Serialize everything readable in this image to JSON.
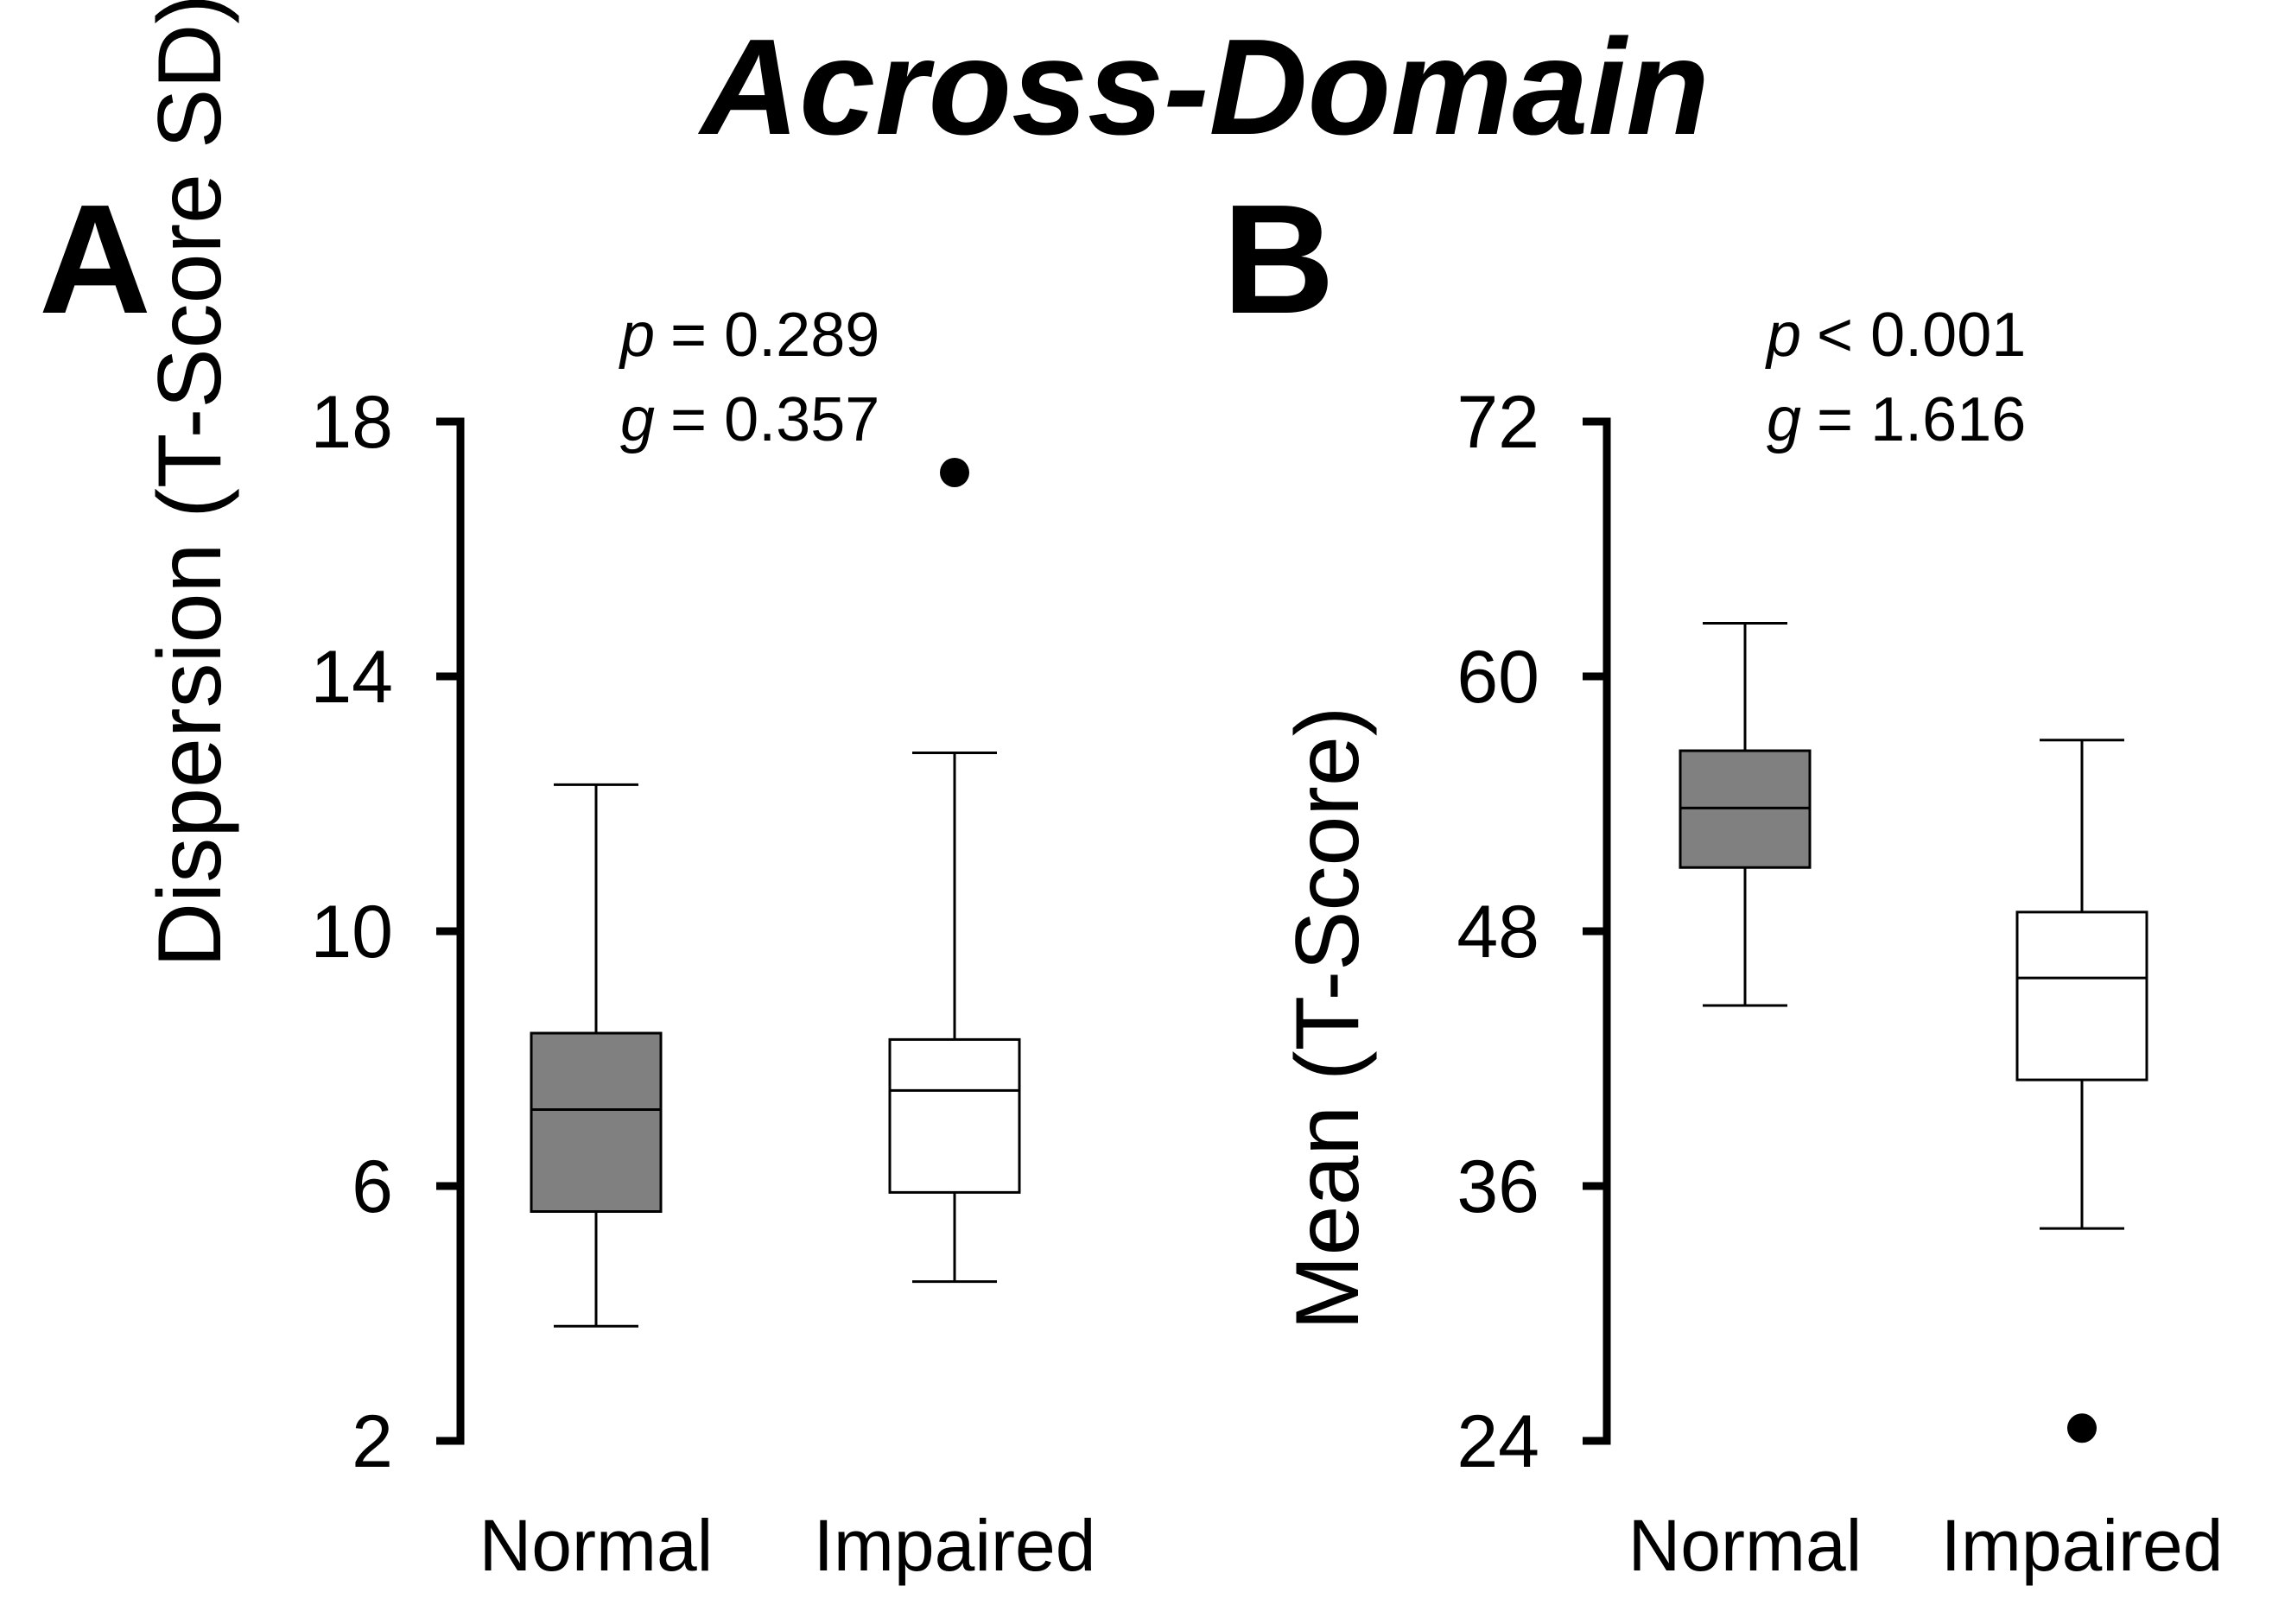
{
  "title": "Across-Domain",
  "chart_data": [
    {
      "panel": "A",
      "type": "box",
      "ylabel": "Dispersion (T-Score SD)",
      "ylim": [
        2,
        18
      ],
      "yticks": [
        2,
        6,
        10,
        14,
        18
      ],
      "categories": [
        "Normal",
        "Impaired"
      ],
      "stats": {
        "p_symbol": "p",
        "p_text": "= 0.289",
        "g_symbol": "g",
        "g_text": "= 0.357"
      },
      "boxes": [
        {
          "category": "Normal",
          "whisker_low": 3.8,
          "q1": 5.6,
          "median": 7.2,
          "q3": 8.4,
          "whisker_high": 12.3,
          "outliers": [],
          "fill": "#808080"
        },
        {
          "category": "Impaired",
          "whisker_low": 4.5,
          "q1": 5.9,
          "median": 7.5,
          "q3": 8.3,
          "whisker_high": 12.8,
          "outliers": [
            17.2
          ],
          "fill": "#ffffff"
        }
      ]
    },
    {
      "panel": "B",
      "type": "box",
      "ylabel": "Mean (T-Score)",
      "ylim": [
        24,
        72
      ],
      "yticks": [
        24,
        36,
        48,
        60,
        72
      ],
      "categories": [
        "Normal",
        "Impaired"
      ],
      "stats": {
        "p_symbol": "p",
        "p_text": "< 0.001",
        "g_symbol": "g",
        "g_text": "= 1.616"
      },
      "boxes": [
        {
          "category": "Normal",
          "whisker_low": 44.5,
          "q1": 51.0,
          "median": 53.8,
          "q3": 56.5,
          "whisker_high": 62.5,
          "outliers": [],
          "fill": "#808080"
        },
        {
          "category": "Impaired",
          "whisker_low": 34.0,
          "q1": 41.0,
          "median": 45.8,
          "q3": 48.9,
          "whisker_high": 57.0,
          "outliers": [
            24.6
          ],
          "fill": "#ffffff"
        }
      ]
    }
  ]
}
